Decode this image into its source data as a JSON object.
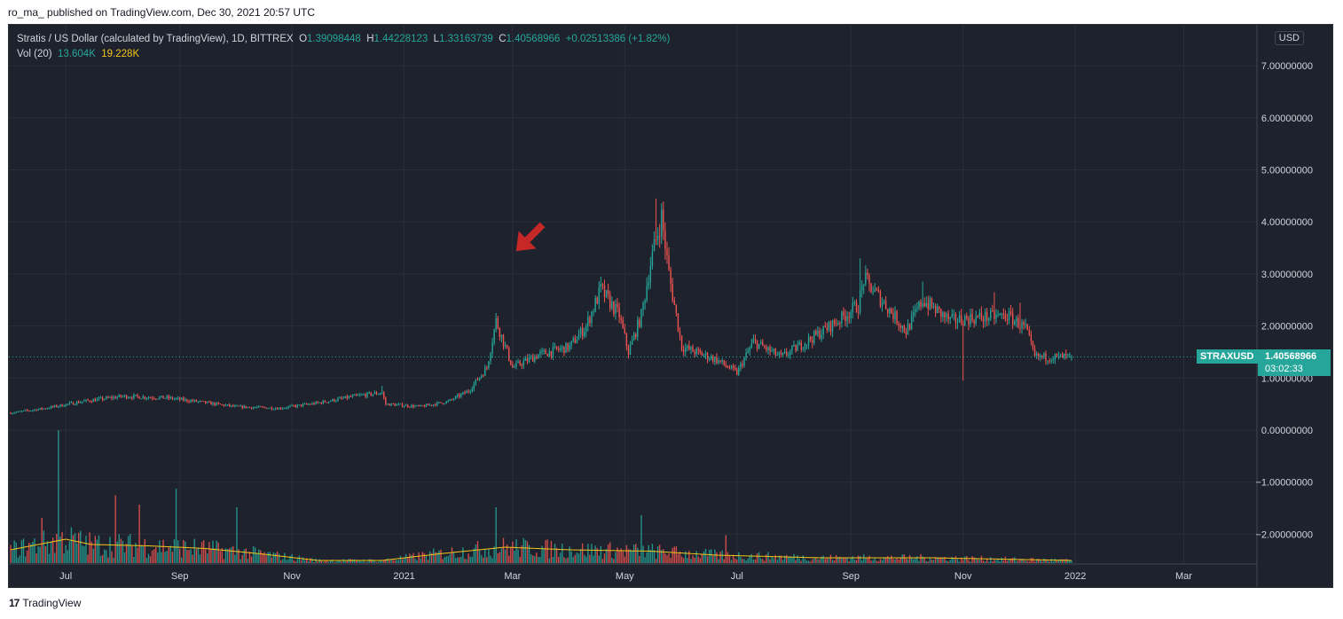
{
  "header": {
    "published_text": "ro_ma_ published on TradingView.com, Dec 30, 2021 20:57 UTC"
  },
  "legend": {
    "title": "Stratis / US Dollar (calculated by TradingView), 1D, BITTREX",
    "o_label": "O",
    "o_value": "1.39098448",
    "h_label": "H",
    "h_value": "1.44228123",
    "l_label": "L",
    "l_value": "1.33163739",
    "c_label": "C",
    "c_value": "1.40568966",
    "change": "+0.02513386 (+1.82%)",
    "vol_label": "Vol (20)",
    "vol_value": "13.604K",
    "vol_ma_value": "19.228K"
  },
  "currency": "USD",
  "price_tag": {
    "symbol": "STRAXUSD",
    "price": "1.40568966",
    "countdown": "03:02:33"
  },
  "footer": {
    "logo_glyph": "17",
    "brand": "TradingView"
  },
  "colors": {
    "background": "#1e222d",
    "up": "#26a69a",
    "down": "#ef5350",
    "volume_ma": "#f5c518",
    "grid": "#2a2e39",
    "axis_text": "#d1d4dc",
    "annotation_arrow": "#c62828"
  },
  "chart_data": {
    "type": "candlestick",
    "title": "Stratis / US Dollar (calculated by TradingView), 1D, BITTREX",
    "ylim": [
      -2.5,
      7.5
    ],
    "y_ticks": [
      -2,
      -1,
      0,
      1,
      2,
      3,
      4,
      5,
      6,
      7
    ],
    "y_tick_labels": [
      "−2.00000000",
      "−1.00000000",
      "0.00000000",
      "1.00000000",
      "2.00000000",
      "3.00000000",
      "4.00000000",
      "5.00000000",
      "6.00000000",
      "7.00000000"
    ],
    "x_range": [
      "2020-06-01",
      "2022-04-15"
    ],
    "x_ticks": [
      {
        "label": "Jul",
        "date": "2020-07-01"
      },
      {
        "label": "Sep",
        "date": "2020-09-01"
      },
      {
        "label": "Nov",
        "date": "2020-11-01"
      },
      {
        "label": "2021",
        "date": "2021-01-01"
      },
      {
        "label": "Mar",
        "date": "2021-03-01"
      },
      {
        "label": "May",
        "date": "2021-05-01"
      },
      {
        "label": "Jul",
        "date": "2021-07-01"
      },
      {
        "label": "Sep",
        "date": "2021-09-01"
      },
      {
        "label": "Nov",
        "date": "2021-11-01"
      },
      {
        "label": "2022",
        "date": "2022-01-01"
      },
      {
        "label": "Mar",
        "date": "2022-03-01"
      }
    ],
    "last_price": 1.40568966,
    "close_path": [
      {
        "date": "2020-06-01",
        "close": 0.33
      },
      {
        "date": "2020-06-20",
        "close": 0.42
      },
      {
        "date": "2020-07-10",
        "close": 0.55
      },
      {
        "date": "2020-08-01",
        "close": 0.65
      },
      {
        "date": "2020-08-25",
        "close": 0.62
      },
      {
        "date": "2020-09-10",
        "close": 0.55
      },
      {
        "date": "2020-10-01",
        "close": 0.45
      },
      {
        "date": "2020-10-25",
        "close": 0.42
      },
      {
        "date": "2020-11-15",
        "close": 0.52
      },
      {
        "date": "2020-12-05",
        "close": 0.65
      },
      {
        "date": "2020-12-20",
        "close": 0.72
      },
      {
        "date": "2020-12-22",
        "close": 0.5
      },
      {
        "date": "2021-01-10",
        "close": 0.45
      },
      {
        "date": "2021-01-25",
        "close": 0.55
      },
      {
        "date": "2021-02-05",
        "close": 0.75
      },
      {
        "date": "2021-02-15",
        "close": 1.2
      },
      {
        "date": "2021-02-20",
        "close": 2.1
      },
      {
        "date": "2021-03-01",
        "close": 1.2
      },
      {
        "date": "2021-03-15",
        "close": 1.45
      },
      {
        "date": "2021-04-01",
        "close": 1.6
      },
      {
        "date": "2021-04-10",
        "close": 2.0
      },
      {
        "date": "2021-04-18",
        "close": 2.7
      },
      {
        "date": "2021-04-28",
        "close": 2.2
      },
      {
        "date": "2021-05-03",
        "close": 1.5
      },
      {
        "date": "2021-05-10",
        "close": 2.2
      },
      {
        "date": "2021-05-15",
        "close": 3.2
      },
      {
        "date": "2021-05-21",
        "close": 4.1
      },
      {
        "date": "2021-05-25",
        "close": 3.0
      },
      {
        "date": "2021-06-01",
        "close": 1.6
      },
      {
        "date": "2021-06-20",
        "close": 1.35
      },
      {
        "date": "2021-07-01",
        "close": 1.1
      },
      {
        "date": "2021-07-10",
        "close": 1.7
      },
      {
        "date": "2021-07-25",
        "close": 1.4
      },
      {
        "date": "2021-08-10",
        "close": 1.75
      },
      {
        "date": "2021-08-25",
        "close": 2.1
      },
      {
        "date": "2021-09-05",
        "close": 2.4
      },
      {
        "date": "2021-09-08",
        "close": 2.9
      },
      {
        "date": "2021-09-20",
        "close": 2.4
      },
      {
        "date": "2021-10-01",
        "close": 1.9
      },
      {
        "date": "2021-10-10",
        "close": 2.5
      },
      {
        "date": "2021-10-25",
        "close": 2.1
      },
      {
        "date": "2021-11-05",
        "close": 2.15
      },
      {
        "date": "2021-11-25",
        "close": 2.2
      },
      {
        "date": "2021-12-05",
        "close": 1.95
      },
      {
        "date": "2021-12-10",
        "close": 1.4
      },
      {
        "date": "2021-12-20",
        "close": 1.4
      },
      {
        "date": "2021-12-30",
        "close": 1.405
      }
    ],
    "notable_wicks": [
      {
        "date": "2020-12-20",
        "high": 0.85
      },
      {
        "date": "2021-02-20",
        "high": 2.25
      },
      {
        "date": "2021-04-18",
        "high": 2.95
      },
      {
        "date": "2021-05-18",
        "high": 4.45
      },
      {
        "date": "2021-05-21",
        "high": 4.2
      },
      {
        "date": "2021-09-06",
        "high": 3.3
      },
      {
        "date": "2021-10-10",
        "high": 2.85
      },
      {
        "date": "2021-11-01",
        "low": 0.95
      },
      {
        "date": "2021-11-18",
        "high": 2.65
      },
      {
        "date": "2021-12-02",
        "high": 2.45
      }
    ],
    "volume": {
      "label": "Vol (20)",
      "last": "13.604K",
      "ma_last": "19.228K",
      "spikes": [
        {
          "date": "2020-06-27",
          "rel": 1.0
        },
        {
          "date": "2020-06-18",
          "rel": 0.34
        },
        {
          "date": "2020-07-28",
          "rel": 0.51
        },
        {
          "date": "2020-08-10",
          "rel": 0.44
        },
        {
          "date": "2020-08-30",
          "rel": 0.56
        },
        {
          "date": "2020-10-02",
          "rel": 0.42
        },
        {
          "date": "2021-02-20",
          "rel": 0.42
        },
        {
          "date": "2021-05-10",
          "rel": 0.36
        },
        {
          "date": "2021-06-25",
          "rel": 0.21
        }
      ],
      "ma_path": [
        {
          "date": "2020-06-01",
          "rel": 0.1
        },
        {
          "date": "2020-07-01",
          "rel": 0.18
        },
        {
          "date": "2020-07-15",
          "rel": 0.14
        },
        {
          "date": "2020-08-15",
          "rel": 0.13
        },
        {
          "date": "2020-09-15",
          "rel": 0.11
        },
        {
          "date": "2020-10-15",
          "rel": 0.07
        },
        {
          "date": "2020-11-15",
          "rel": 0.02
        },
        {
          "date": "2020-12-20",
          "rel": 0.02
        },
        {
          "date": "2021-01-20",
          "rel": 0.07
        },
        {
          "date": "2021-02-25",
          "rel": 0.12
        },
        {
          "date": "2021-04-01",
          "rel": 0.1
        },
        {
          "date": "2021-05-15",
          "rel": 0.09
        },
        {
          "date": "2021-06-20",
          "rel": 0.06
        },
        {
          "date": "2021-08-15",
          "rel": 0.04
        },
        {
          "date": "2021-10-15",
          "rel": 0.04
        },
        {
          "date": "2021-12-30",
          "rel": 0.02
        }
      ]
    }
  }
}
